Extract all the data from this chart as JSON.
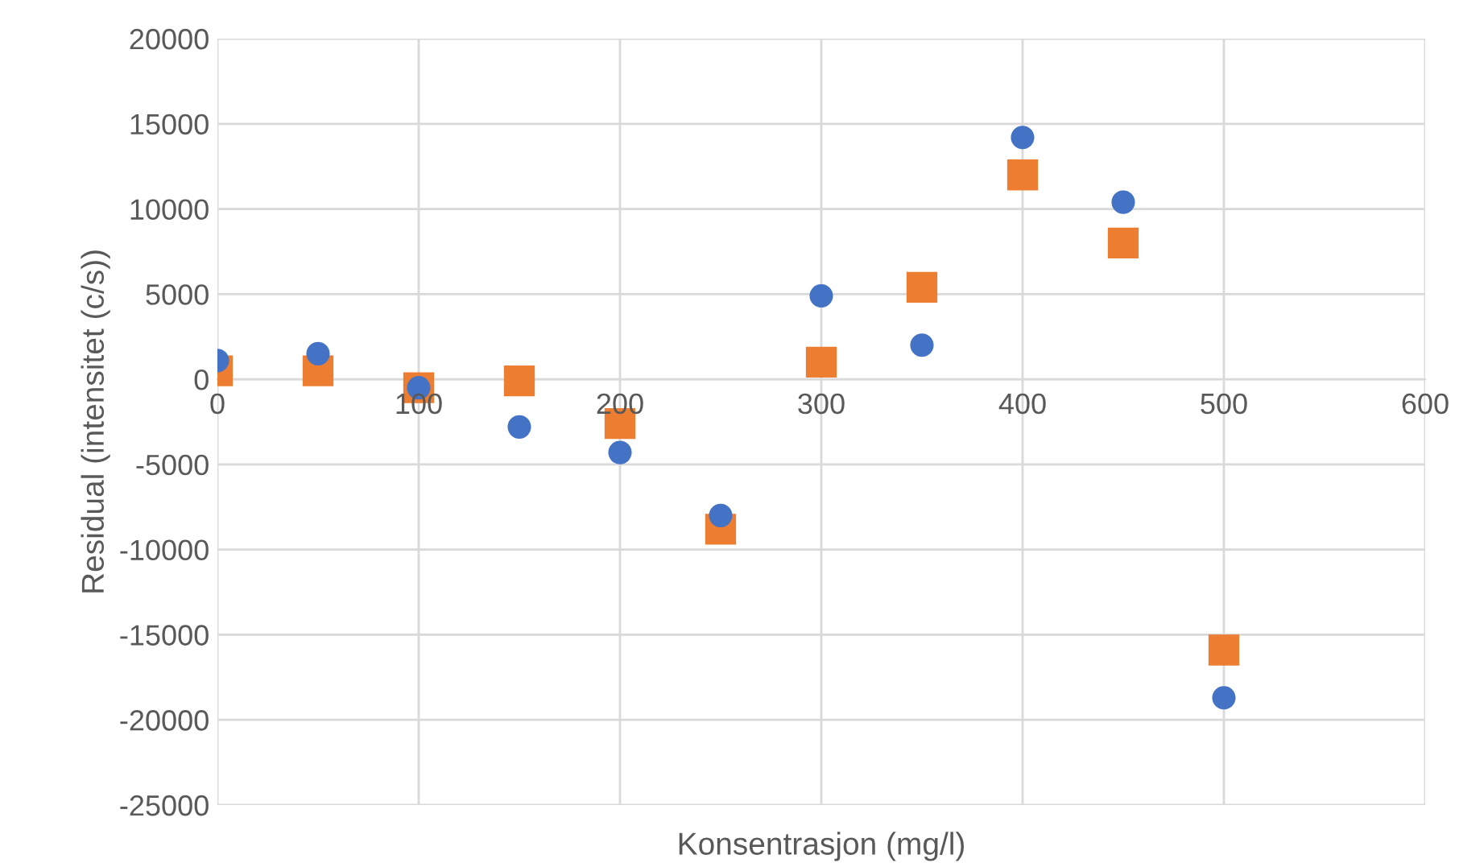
{
  "chart_data": {
    "type": "scatter",
    "xlabel": "Konsentrasjon (mg/l)",
    "ylabel": "Residual (intensitet (c/s))",
    "x": [
      0,
      50,
      100,
      150,
      200,
      250,
      300,
      350,
      400,
      450,
      500
    ],
    "series": [
      {
        "color": "#4472c4",
        "marker": "circle",
        "values": [
          1100,
          1500,
          -500,
          -2800,
          -4300,
          -8000,
          4900,
          2000,
          14200,
          10400,
          -18700
        ]
      },
      {
        "color": "#ed7d31",
        "marker": "square",
        "values": [
          500,
          500,
          -500,
          -100,
          -2600,
          -8800,
          1000,
          5400,
          12000,
          8000,
          -15900
        ]
      }
    ],
    "xlim": [
      0,
      600
    ],
    "xticks": [
      0,
      100,
      200,
      300,
      400,
      500,
      600
    ],
    "ylim": [
      -25000,
      20000
    ],
    "yticks": [
      -25000,
      -20000,
      -15000,
      -10000,
      -5000,
      0,
      5000,
      10000,
      15000,
      20000
    ],
    "grid": true,
    "legend": false
  }
}
